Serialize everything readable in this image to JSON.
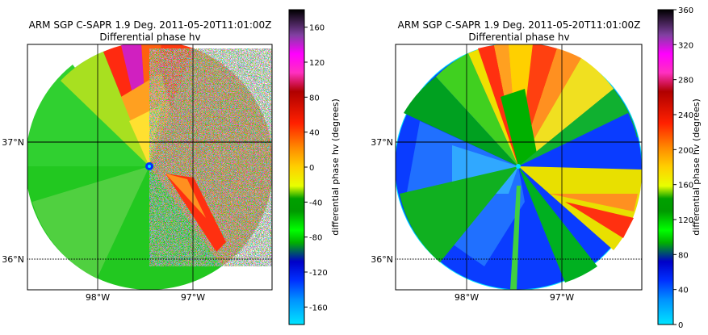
{
  "chart_data": [
    {
      "type": "heatmap",
      "subtype": "polar-radar-ppi",
      "title": "ARM SGP C-SAPR 1.9 Deg. 2011-05-20T11:01:00Z",
      "subtitle": "Differential phase hv",
      "colorbar_label": "differential phase hv (degrees)",
      "colorbar_range": [
        -180,
        180
      ],
      "colorbar_ticks": [
        -160,
        -120,
        -80,
        -40,
        0,
        40,
        80,
        120,
        160
      ],
      "lat_ticks": [
        "37°N",
        "36°N"
      ],
      "lon_ticks": [
        "98°W",
        "97°W"
      ],
      "colormap": "cyan-blue-green-yellow-orange-red-magenta-purple-black"
    },
    {
      "type": "heatmap",
      "subtype": "polar-radar-ppi",
      "title": "ARM SGP C-SAPR 1.9 Deg. 2011-05-20T11:01:00Z",
      "subtitle": "Differential phase hv",
      "colorbar_label": "differential phase hv (degrees)",
      "colorbar_range": [
        0,
        360
      ],
      "colorbar_ticks": [
        0,
        40,
        80,
        120,
        160,
        200,
        240,
        280,
        320,
        360
      ],
      "lat_ticks": [
        "37°N",
        "36°N"
      ],
      "lon_ticks": [
        "98°W",
        "97°W"
      ],
      "colormap": "cyan-blue-green-yellow-orange-red-magenta-purple-black"
    }
  ],
  "colors": {
    "cmap_stops": [
      "#00e5ff",
      "#0040ff",
      "#0000c0",
      "#00c000",
      "#00ff00",
      "#009000",
      "#e8ff00",
      "#ffd000",
      "#ff8000",
      "#ff2000",
      "#c00000",
      "#ff00ff",
      "#800080",
      "#000000"
    ]
  }
}
